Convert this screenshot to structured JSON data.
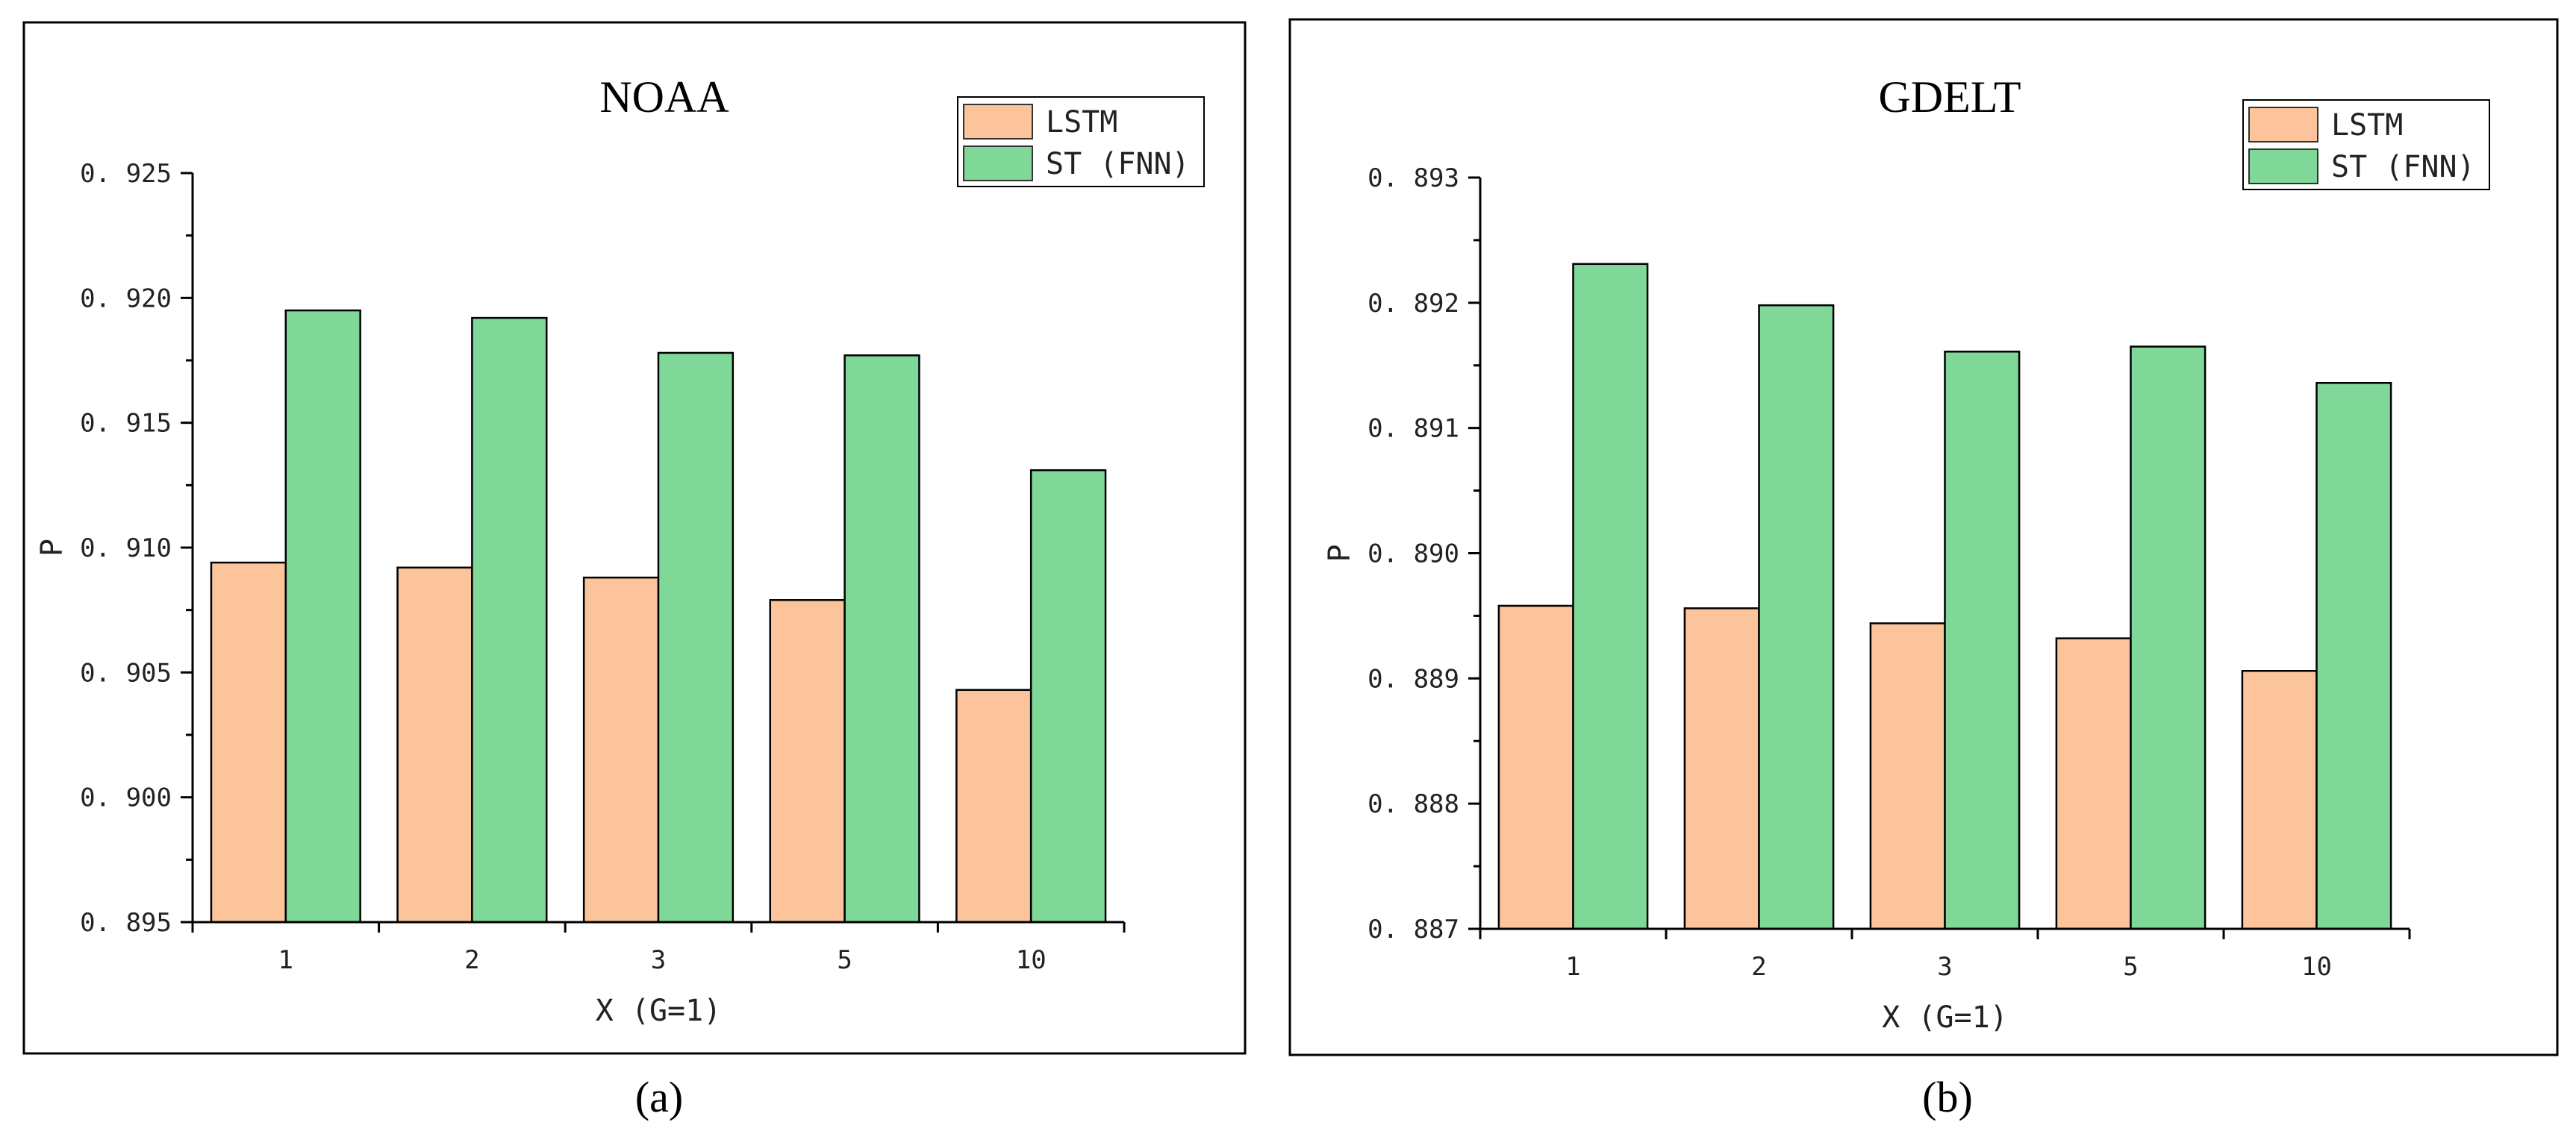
{
  "colors": {
    "lstm": "#fbc49a",
    "stfnn": "#7fd898"
  },
  "chart_data": [
    {
      "type": "bar",
      "title": "NOAA",
      "caption": "(a)",
      "xlabel": "X (G=1)",
      "ylabel": "P",
      "categories": [
        "1",
        "2",
        "3",
        "5",
        "10"
      ],
      "ylim": [
        0.895,
        0.925
      ],
      "yticks": [
        0.895,
        0.9,
        0.905,
        0.91,
        0.915,
        0.92,
        0.925
      ],
      "ytick_labels": [
        "0. 895",
        "0. 900",
        "0. 905",
        "0. 910",
        "0. 915",
        "0. 920",
        "0. 925"
      ],
      "series": [
        {
          "name": "LSTM",
          "values": [
            0.9094,
            0.9092,
            0.9088,
            0.9079,
            0.9043
          ]
        },
        {
          "name": "ST (FNN)",
          "values": [
            0.9195,
            0.9192,
            0.9178,
            0.9177,
            0.9131
          ]
        }
      ],
      "legend": "top-right"
    },
    {
      "type": "bar",
      "title": "GDELT",
      "caption": "(b)",
      "xlabel": "X (G=1)",
      "ylabel": "P",
      "categories": [
        "1",
        "2",
        "3",
        "5",
        "10"
      ],
      "ylim": [
        0.887,
        0.893
      ],
      "yticks": [
        0.887,
        0.888,
        0.889,
        0.89,
        0.891,
        0.892,
        0.893
      ],
      "ytick_labels": [
        "0. 887",
        "0. 888",
        "0. 889",
        "0. 890",
        "0. 891",
        "0. 892",
        "0. 893"
      ],
      "series": [
        {
          "name": "LSTM",
          "values": [
            0.88958,
            0.88956,
            0.88944,
            0.88932,
            0.88906
          ]
        },
        {
          "name": "ST (FNN)",
          "values": [
            0.89231,
            0.89198,
            0.89161,
            0.89165,
            0.89136
          ]
        }
      ],
      "legend": "top-right"
    }
  ]
}
